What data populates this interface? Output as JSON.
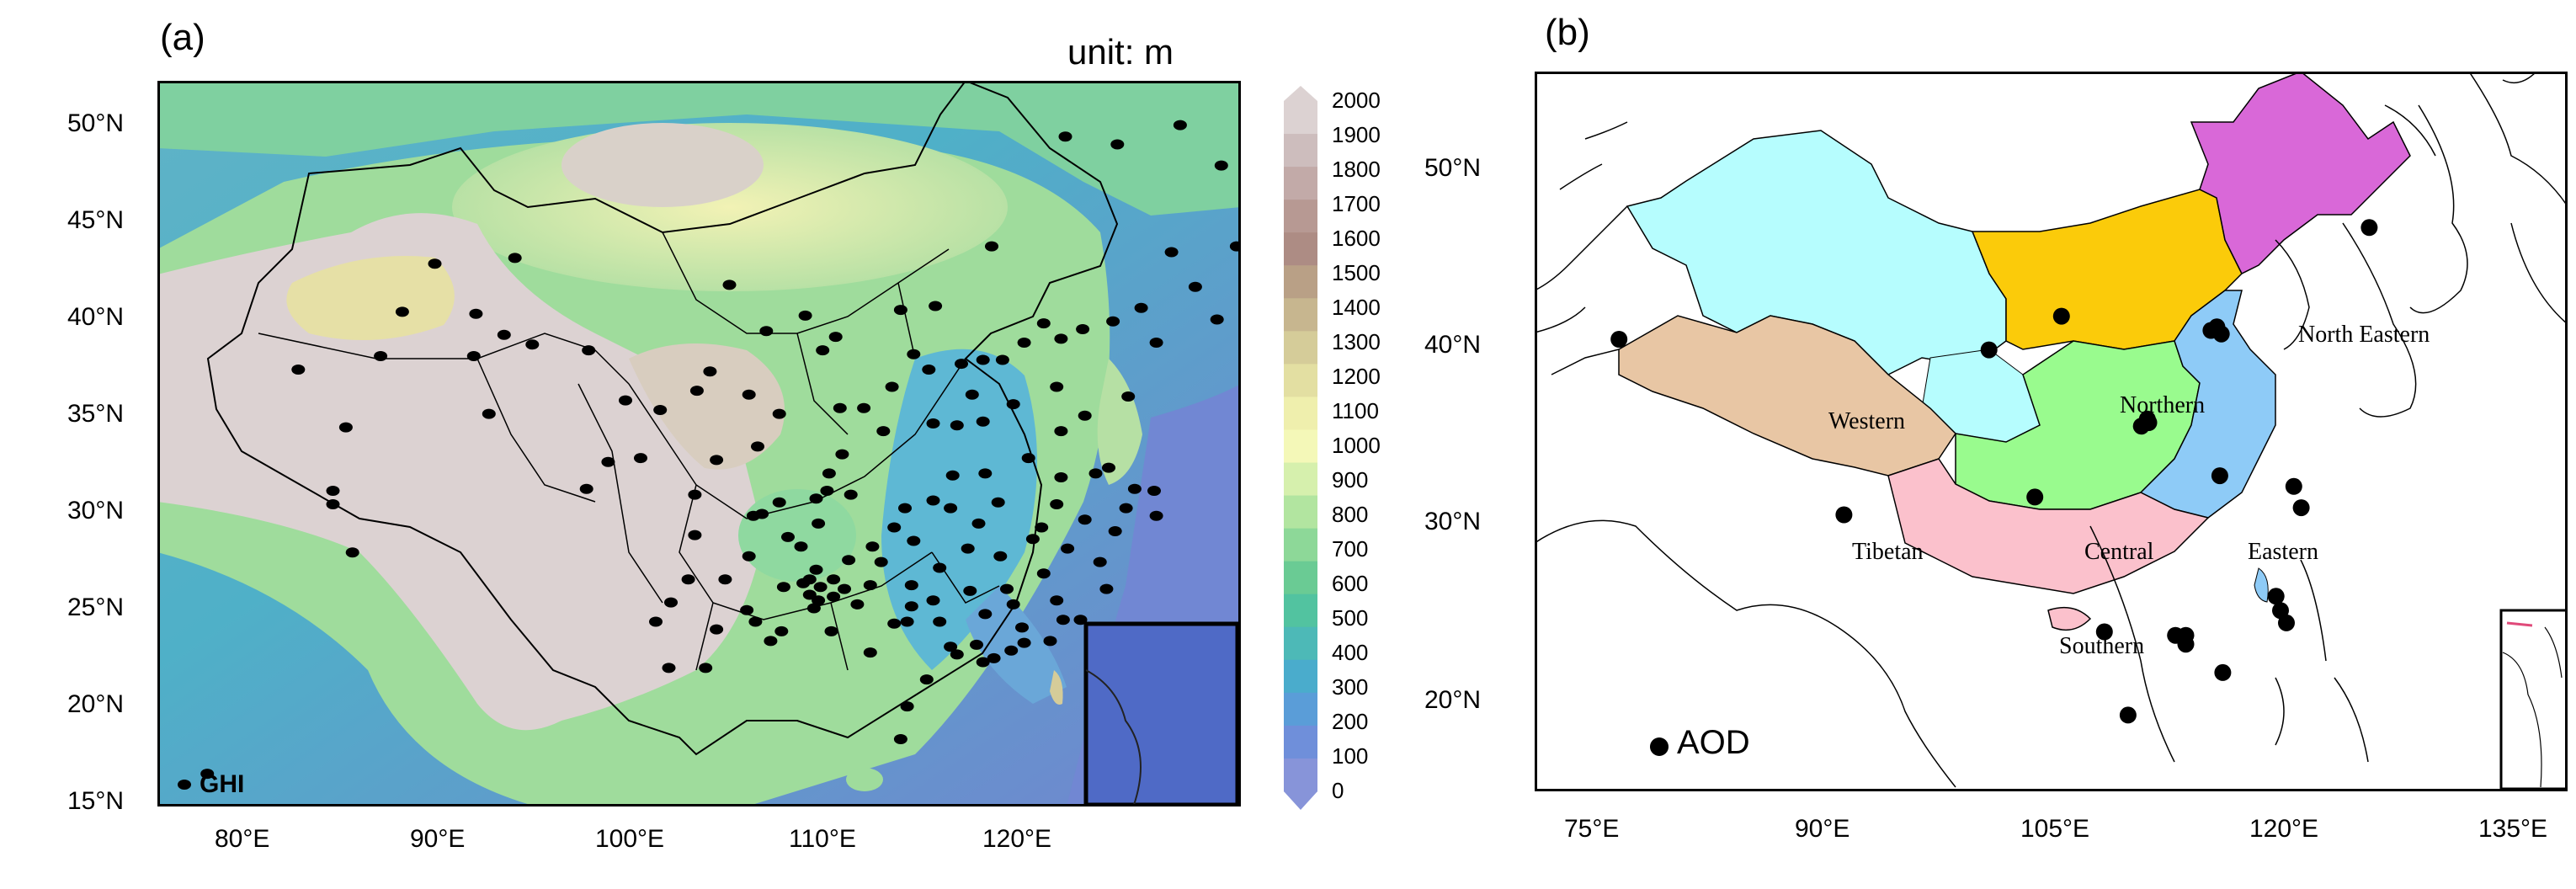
{
  "panel_a": {
    "label": "(a)",
    "unit": "unit: m",
    "legend": "GHI",
    "lon_ticks": [
      "80°E",
      "90°E",
      "100°E",
      "110°E",
      "120°E"
    ],
    "lat_ticks": [
      "50°N",
      "45°N",
      "40°N",
      "35°N",
      "30°N",
      "25°N",
      "20°N",
      "15°N"
    ],
    "colorbar": {
      "ticks": [
        "2000",
        "1900",
        "1800",
        "1700",
        "1600",
        "1500",
        "1400",
        "1300",
        "1200",
        "1100",
        "1000",
        "900",
        "800",
        "700",
        "600",
        "500",
        "400",
        "300",
        "200",
        "100",
        "0"
      ],
      "colors": [
        "#dcd2d2",
        "#cdbdbd",
        "#c2aaa8",
        "#b79993",
        "#ad8c84",
        "#b9a086",
        "#c7b68f",
        "#d5cc99",
        "#e3dfa2",
        "#efefad",
        "#f4f8b8",
        "#d6f0ad",
        "#b2e5a0",
        "#8dd898",
        "#6acb94",
        "#52c3a0",
        "#4db9b7",
        "#4aaccc",
        "#5a9dd8",
        "#6f8fda",
        "#8794d9"
      ]
    },
    "stations": [
      [
        77.8,
        16.5
      ],
      [
        88.3,
        43.0
      ],
      [
        92.0,
        43.3
      ],
      [
        86.8,
        40.5
      ],
      [
        85.8,
        38.2
      ],
      [
        83.6,
        31.2
      ],
      [
        83.6,
        30.5
      ],
      [
        84.5,
        28.0
      ],
      [
        84.2,
        34.5
      ],
      [
        82.0,
        37.5
      ],
      [
        90.2,
        40.4
      ],
      [
        90.1,
        38.2
      ],
      [
        91.5,
        39.3
      ],
      [
        92.8,
        38.8
      ],
      [
        95.4,
        38.5
      ],
      [
        90.8,
        35.2
      ],
      [
        97.1,
        35.9
      ],
      [
        98.7,
        35.4
      ],
      [
        101.0,
        37.4
      ],
      [
        100.4,
        36.4
      ],
      [
        102.8,
        36.2
      ],
      [
        96.3,
        32.7
      ],
      [
        95.3,
        31.3
      ],
      [
        97.8,
        32.9
      ],
      [
        100.3,
        31.0
      ],
      [
        101.3,
        32.8
      ],
      [
        103.2,
        33.5
      ],
      [
        103.4,
        30.0
      ],
      [
        104.2,
        30.6
      ],
      [
        105.9,
        30.8
      ],
      [
        106.5,
        32.1
      ],
      [
        107.5,
        31.0
      ],
      [
        106.0,
        29.5
      ],
      [
        104.6,
        28.8
      ],
      [
        102.8,
        27.8
      ],
      [
        100.0,
        26.6
      ],
      [
        99.2,
        25.4
      ],
      [
        98.5,
        24.4
      ],
      [
        99.1,
        22.0
      ],
      [
        100.8,
        22.0
      ],
      [
        101.3,
        24.0
      ],
      [
        102.7,
        25.0
      ],
      [
        103.8,
        23.4
      ],
      [
        104.4,
        26.2
      ],
      [
        105.6,
        26.6
      ],
      [
        106.7,
        26.6
      ],
      [
        107.4,
        27.6
      ],
      [
        108.5,
        28.3
      ],
      [
        109.5,
        29.3
      ],
      [
        110.4,
        28.6
      ],
      [
        111.6,
        27.2
      ],
      [
        112.9,
        28.2
      ],
      [
        113.0,
        26.0
      ],
      [
        111.3,
        25.5
      ],
      [
        110.3,
        25.2
      ],
      [
        108.4,
        22.8
      ],
      [
        109.5,
        24.3
      ],
      [
        106.6,
        23.9
      ],
      [
        111.0,
        21.4
      ],
      [
        112.1,
        23.1
      ],
      [
        113.3,
        23.2
      ],
      [
        114.1,
        22.5
      ],
      [
        115.5,
        23.3
      ],
      [
        116.7,
        23.4
      ],
      [
        117.3,
        24.5
      ],
      [
        118.1,
        24.5
      ],
      [
        119.3,
        26.1
      ],
      [
        119.0,
        27.5
      ],
      [
        117.0,
        25.5
      ],
      [
        116.4,
        26.9
      ],
      [
        115.9,
        28.7
      ],
      [
        114.4,
        27.8
      ],
      [
        113.4,
        29.5
      ],
      [
        114.3,
        30.6
      ],
      [
        112.1,
        30.3
      ],
      [
        111.3,
        30.7
      ],
      [
        110.0,
        30.3
      ],
      [
        112.2,
        32.0
      ],
      [
        113.7,
        32.1
      ],
      [
        115.7,
        32.9
      ],
      [
        117.2,
        31.9
      ],
      [
        118.8,
        32.1
      ],
      [
        120.6,
        31.3
      ],
      [
        121.5,
        31.2
      ],
      [
        120.2,
        30.3
      ],
      [
        121.6,
        29.9
      ],
      [
        119.7,
        29.1
      ],
      [
        118.3,
        29.7
      ],
      [
        117.0,
        30.5
      ],
      [
        116.3,
        29.3
      ],
      [
        119.4,
        32.4
      ],
      [
        117.2,
        34.3
      ],
      [
        118.3,
        35.1
      ],
      [
        120.3,
        36.1
      ],
      [
        117.0,
        36.6
      ],
      [
        115.0,
        35.7
      ],
      [
        113.6,
        34.8
      ],
      [
        112.4,
        34.6
      ],
      [
        111.3,
        34.7
      ],
      [
        109.0,
        34.3
      ],
      [
        108.1,
        35.5
      ],
      [
        109.4,
        36.6
      ],
      [
        110.4,
        38.3
      ],
      [
        111.1,
        37.5
      ],
      [
        112.6,
        37.8
      ],
      [
        113.1,
        36.2
      ],
      [
        113.6,
        38.0
      ],
      [
        114.5,
        38.0
      ],
      [
        115.5,
        38.9
      ],
      [
        116.4,
        39.9
      ],
      [
        117.2,
        39.1
      ],
      [
        118.2,
        39.6
      ],
      [
        119.6,
        40.0
      ],
      [
        121.6,
        38.9
      ],
      [
        120.9,
        40.7
      ],
      [
        123.4,
        41.8
      ],
      [
        124.4,
        40.1
      ],
      [
        122.3,
        43.6
      ],
      [
        125.3,
        43.9
      ],
      [
        126.6,
        45.8
      ],
      [
        124.6,
        48.1
      ],
      [
        122.7,
        50.2
      ],
      [
        119.8,
        49.2
      ],
      [
        117.4,
        49.6
      ],
      [
        114.0,
        43.9
      ],
      [
        111.4,
        40.8
      ],
      [
        109.8,
        40.6
      ],
      [
        106.8,
        39.2
      ],
      [
        105.4,
        40.3
      ],
      [
        101.9,
        41.9
      ],
      [
        103.6,
        39.5
      ],
      [
        104.2,
        35.2
      ],
      [
        106.2,
        38.5
      ],
      [
        107.0,
        35.5
      ],
      [
        107.1,
        33.1
      ],
      [
        106.4,
        31.2
      ],
      [
        105.2,
        28.3
      ],
      [
        103.0,
        29.9
      ],
      [
        100.3,
        28.9
      ],
      [
        101.7,
        26.6
      ],
      [
        103.1,
        24.4
      ],
      [
        104.3,
        23.9
      ],
      [
        105.8,
        25.1
      ],
      [
        106.0,
        25.5
      ],
      [
        106.1,
        26.2
      ],
      [
        106.7,
        25.7
      ],
      [
        105.6,
        25.8
      ],
      [
        105.3,
        26.4
      ],
      [
        105.9,
        27.1
      ],
      [
        107.2,
        26.1
      ],
      [
        107.8,
        25.3
      ],
      [
        108.4,
        26.3
      ],
      [
        108.9,
        27.5
      ],
      [
        110.3,
        26.3
      ],
      [
        110.1,
        24.4
      ],
      [
        111.6,
        24.4
      ],
      [
        112.4,
        22.7
      ],
      [
        113.7,
        24.8
      ],
      [
        114.7,
        26.1
      ],
      [
        115.0,
        25.3
      ],
      [
        115.4,
        24.1
      ],
      [
        114.9,
        22.9
      ],
      [
        113.6,
        22.3
      ],
      [
        109.8,
        18.3
      ],
      [
        110.1,
        20.0
      ],
      [
        117.5,
        28.2
      ]
    ]
  },
  "panel_b": {
    "label": "(b)",
    "legend": "AOD",
    "lon_ticks": [
      "75°E",
      "90°E",
      "105°E",
      "120°E",
      "135°E"
    ],
    "lat_ticks": [
      "50°N",
      "40°N",
      "30°N",
      "20°N"
    ],
    "regions": [
      {
        "name": "Western",
        "color": "#b6fdfe"
      },
      {
        "name": "Northern",
        "color": "#fbcb0a"
      },
      {
        "name": "North Eastern",
        "color": "#d968d8"
      },
      {
        "name": "Tibetan",
        "color": "#e8c6a4"
      },
      {
        "name": "Central",
        "color": "#99fb8e"
      },
      {
        "name": "Eastern",
        "color": "#8ecbf7"
      },
      {
        "name": "Southern",
        "color": "#fbc1cc"
      }
    ],
    "stations": [
      [
        75.9,
        39.5
      ],
      [
        100.9,
        38.9
      ],
      [
        105.8,
        40.8
      ],
      [
        111.6,
        35.0
      ],
      [
        111.7,
        34.8
      ],
      [
        111.2,
        34.6
      ],
      [
        115.9,
        40.0
      ],
      [
        116.3,
        40.2
      ],
      [
        116.6,
        39.8
      ],
      [
        126.6,
        45.8
      ],
      [
        91.1,
        29.6
      ],
      [
        104.0,
        30.6
      ],
      [
        116.5,
        31.8
      ],
      [
        121.5,
        31.2
      ],
      [
        122.0,
        30.0
      ],
      [
        120.3,
        25.0
      ],
      [
        120.6,
        24.2
      ],
      [
        121.0,
        23.5
      ],
      [
        114.2,
        22.3
      ],
      [
        113.5,
        22.8
      ],
      [
        114.2,
        22.8
      ],
      [
        108.7,
        23.0
      ],
      [
        116.7,
        20.7
      ],
      [
        110.3,
        18.3
      ]
    ]
  }
}
